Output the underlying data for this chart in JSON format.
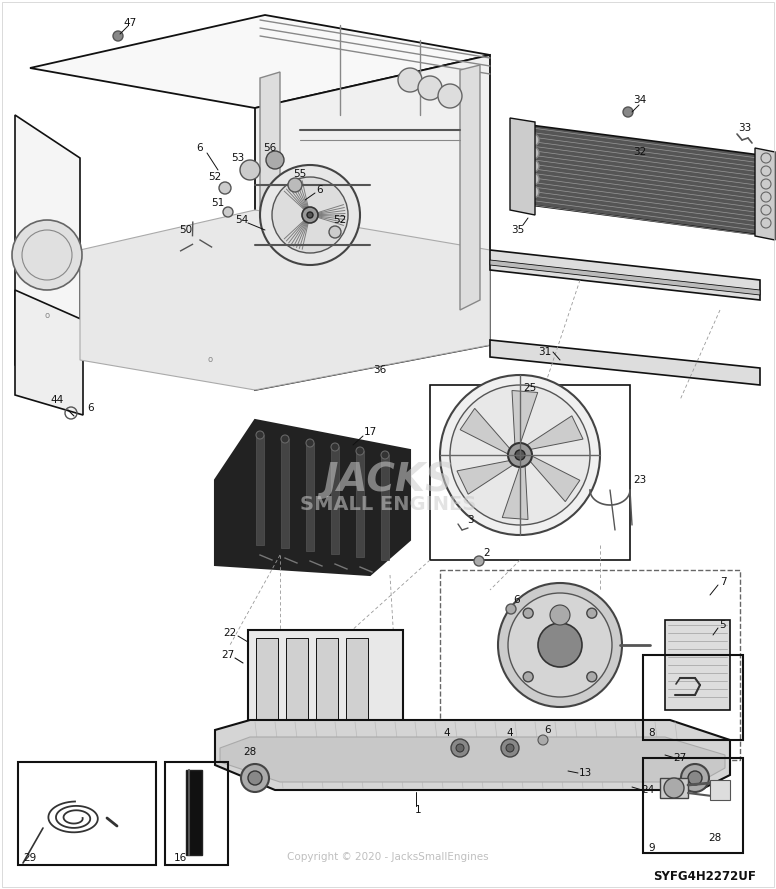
{
  "bg_color": "#ffffff",
  "line_color": "#111111",
  "fig_width": 7.76,
  "fig_height": 8.89,
  "watermark": "Copyright © 2020 - JacksSmallEngines",
  "model_number": "SYFG4H2272UF",
  "jacks_line1": "JACKS",
  "jacks_line2": "SMALL ENGINES",
  "border_color": "#cccccc"
}
